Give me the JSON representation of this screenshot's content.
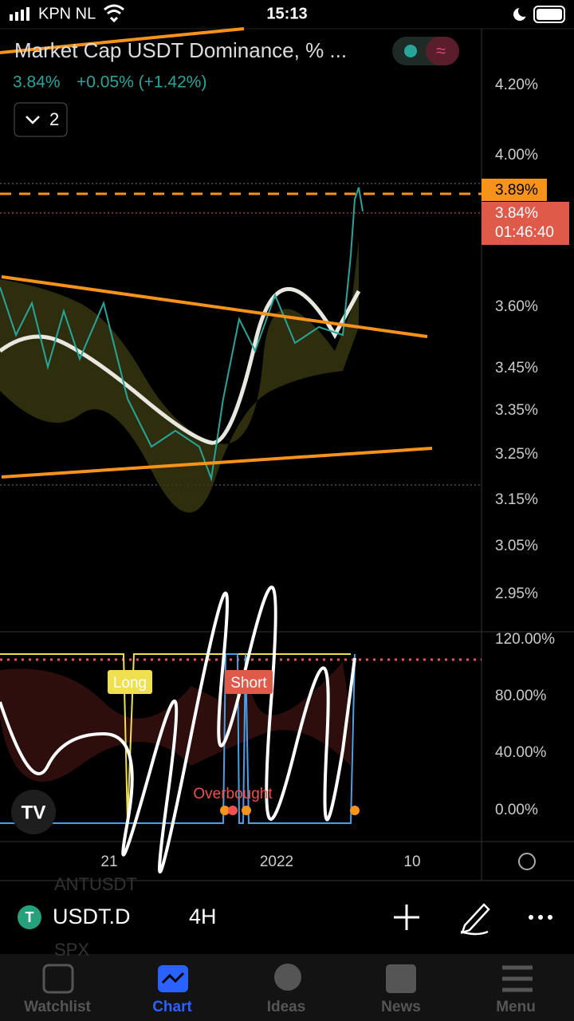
{
  "status_bar": {
    "carrier": "KPN NL",
    "time": "15:13"
  },
  "chart": {
    "title": "Market Cap USDT Dominance, % ...",
    "last": "3.84%",
    "change": "+0.05% (+1.42%)",
    "indicators": "2",
    "price_axis": [
      "4.20%",
      "4.00%",
      "3.60%",
      "3.45%",
      "3.35%",
      "3.25%",
      "3.15%",
      "3.05%",
      "2.95%"
    ],
    "tag_high": "3.89%",
    "tag_last": "3.84%",
    "countdown": "01:46:40",
    "osc_axis": [
      "120.00%",
      "80.00%",
      "40.00%",
      "0.00%"
    ],
    "annotations": [
      "Long",
      "Short",
      "Overbought"
    ],
    "time_axis": [
      "21",
      "2022",
      "10"
    ]
  },
  "symbol_bar": {
    "ghost_top": "ANTUSDT",
    "symbol": "USDT.D",
    "interval": "4H",
    "ghost_bottom": "SPX"
  },
  "tabs": [
    "Watchlist",
    "Chart",
    "Ideas",
    "News",
    "Menu"
  ]
}
